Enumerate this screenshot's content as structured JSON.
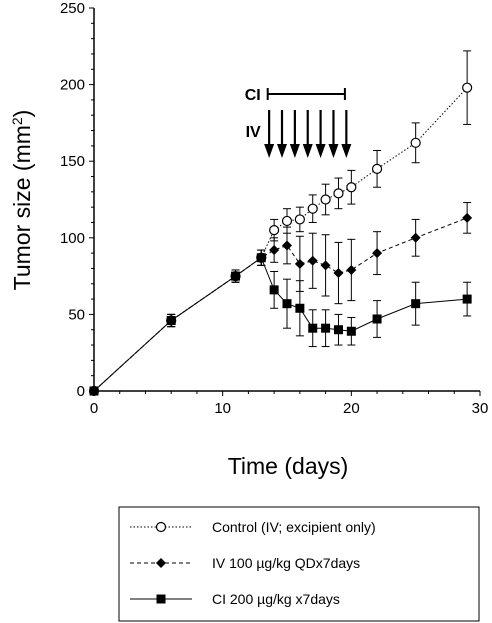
{
  "chart_data": {
    "type": "line",
    "xlabel": "Time (days)",
    "ylabel_main": "Tumor size (mm",
    "ylabel_sup": "2",
    "ylabel_end": ")",
    "xlim": [
      0,
      30
    ],
    "ylim": [
      0,
      250
    ],
    "xticks": [
      0,
      10,
      20,
      30
    ],
    "yticks": [
      0,
      50,
      100,
      150,
      200,
      250
    ],
    "grid": false,
    "legend_placement": "bottom",
    "series": [
      {
        "name": "Control (IV; excipient only)",
        "line_style": "dotted",
        "marker": "circle-open",
        "x": [
          0,
          6,
          11,
          13,
          14,
          15,
          16,
          17,
          18,
          19,
          20,
          22,
          25,
          29
        ],
        "y": [
          0,
          46,
          75,
          87,
          105,
          111,
          112,
          119,
          125,
          129,
          133,
          145,
          162,
          198
        ],
        "err": [
          0,
          4,
          4,
          5,
          7,
          8,
          8,
          9,
          10,
          10,
          11,
          12,
          13,
          24
        ]
      },
      {
        "name": "IV 100 µg/kg QDx7days",
        "line_style": "dashed",
        "marker": "diamond-filled",
        "x": [
          0,
          6,
          11,
          13,
          14,
          15,
          16,
          17,
          18,
          19,
          20,
          22,
          25,
          29
        ],
        "y": [
          0,
          46,
          75,
          87,
          92,
          95,
          83,
          85,
          82,
          77,
          79,
          90,
          100,
          113
        ],
        "err": [
          0,
          4,
          4,
          5,
          8,
          12,
          18,
          18,
          20,
          20,
          20,
          14,
          12,
          10
        ]
      },
      {
        "name": "CI 200 µg/kg x7days",
        "line_style": "solid",
        "marker": "square-filled",
        "x": [
          0,
          6,
          11,
          13,
          14,
          15,
          16,
          17,
          18,
          19,
          20,
          22,
          25,
          29
        ],
        "y": [
          0,
          46,
          75,
          87,
          66,
          57,
          54,
          41,
          41,
          40,
          39,
          47,
          57,
          60
        ],
        "err": [
          0,
          4,
          4,
          5,
          12,
          16,
          18,
          12,
          12,
          10,
          9,
          12,
          14,
          11
        ]
      }
    ],
    "annotations": {
      "ci_label": "CI",
      "iv_label": "IV",
      "ci_bar_start": 13.5,
      "ci_bar_end": 19.5,
      "iv_arrow_days": [
        14,
        15,
        16,
        17,
        18,
        19,
        20
      ]
    }
  }
}
